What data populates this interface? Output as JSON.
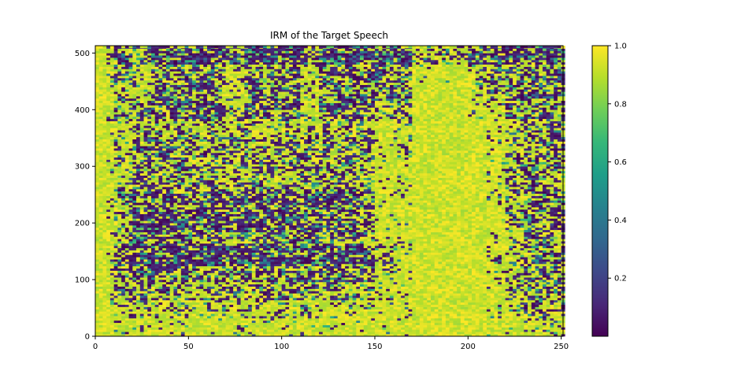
{
  "chart_data": {
    "type": "heatmap",
    "title": "IRM of the Target Speech",
    "xlabel": "",
    "ylabel": "",
    "xlim": [
      0,
      251
    ],
    "ylim": [
      0,
      513
    ],
    "x_ticks": [
      0,
      50,
      100,
      150,
      200,
      250
    ],
    "y_ticks": [
      0,
      100,
      200,
      300,
      400,
      500
    ],
    "colormap": "viridis",
    "color_range": [
      0,
      1
    ],
    "colorbar_ticks": [
      0.2,
      0.4,
      0.6,
      0.8,
      1.0
    ],
    "colorbar_tick_labels": [
      "0.2",
      "0.4",
      "0.6",
      "0.8",
      "1.0"
    ],
    "grid": false,
    "approx_mean_grid": {
      "x_step": 10,
      "y_step": 32,
      "rows_bottom_to_top": [
        [
          1,
          0.9,
          0.9,
          0.9,
          0.9,
          0.9,
          0.9,
          0.9,
          0.9,
          0.9,
          0.9,
          0.9,
          0.9,
          0.9,
          0.9,
          0.95,
          0.95,
          1,
          1,
          1,
          1,
          0.95,
          0.95,
          0.85,
          0.7
        ],
        [
          0.95,
          0.75,
          0.75,
          0.75,
          0.75,
          0.75,
          0.75,
          0.75,
          0.75,
          0.75,
          0.75,
          0.75,
          0.75,
          0.75,
          0.85,
          0.9,
          0.9,
          1,
          1,
          1,
          1,
          0.85,
          0.85,
          0.6,
          0.5
        ],
        [
          0.85,
          0.5,
          0.5,
          0.5,
          0.5,
          0.55,
          0.5,
          0.5,
          0.5,
          0.5,
          0.5,
          0.5,
          0.5,
          0.5,
          0.55,
          0.85,
          0.85,
          1,
          1,
          1,
          1,
          0.9,
          0.6,
          0.5,
          0.5
        ],
        [
          0.8,
          0.35,
          0.35,
          0.35,
          0.3,
          0.4,
          0.35,
          0.35,
          0.4,
          0.35,
          0.35,
          0.35,
          0.35,
          0.35,
          0.45,
          0.8,
          0.85,
          1,
          1,
          1,
          1,
          0.85,
          0.6,
          0.45,
          0.5
        ],
        [
          0.75,
          0.3,
          0.15,
          0.15,
          0.15,
          0.25,
          0.15,
          0.15,
          0.2,
          0.15,
          0.15,
          0.15,
          0.2,
          0.15,
          0.25,
          0.45,
          0.8,
          1,
          1,
          1,
          1,
          0.85,
          0.7,
          0.5,
          0.5
        ],
        [
          0.8,
          0.5,
          0.3,
          0.3,
          0.35,
          0.4,
          0.35,
          0.3,
          0.3,
          0.35,
          0.3,
          0.3,
          0.3,
          0.35,
          0.55,
          0.85,
          0.9,
          1,
          1,
          1,
          1,
          0.9,
          0.7,
          0.45,
          0.45
        ],
        [
          0.85,
          0.6,
          0.25,
          0.25,
          0.25,
          0.3,
          0.3,
          0.25,
          0.3,
          0.3,
          0.35,
          0.45,
          0.3,
          0.25,
          0.5,
          0.9,
          0.9,
          1,
          1,
          1,
          1,
          0.9,
          0.6,
          0.4,
          0.4
        ],
        [
          0.85,
          0.6,
          0.3,
          0.3,
          0.3,
          0.35,
          0.35,
          0.3,
          0.3,
          0.35,
          0.3,
          0.35,
          0.3,
          0.3,
          0.55,
          0.9,
          0.9,
          1,
          1,
          1,
          1,
          0.9,
          0.6,
          0.45,
          0.4
        ],
        [
          0.9,
          0.7,
          0.45,
          0.45,
          0.45,
          0.6,
          0.5,
          0.5,
          0.5,
          0.65,
          0.5,
          0.45,
          0.45,
          0.45,
          0.55,
          0.95,
          0.9,
          1,
          1,
          1,
          1,
          0.9,
          0.65,
          0.5,
          0.45
        ],
        [
          0.9,
          0.7,
          0.45,
          0.45,
          0.5,
          0.55,
          0.55,
          0.5,
          0.5,
          0.6,
          0.5,
          0.45,
          0.5,
          0.45,
          0.6,
          0.9,
          0.85,
          1,
          1,
          1,
          1,
          0.85,
          0.6,
          0.45,
          0.45
        ],
        [
          0.9,
          0.7,
          0.35,
          0.35,
          0.4,
          0.55,
          0.5,
          0.5,
          0.45,
          0.55,
          0.5,
          0.4,
          0.5,
          0.45,
          0.55,
          0.9,
          0.75,
          1,
          1,
          1,
          1,
          0.85,
          0.6,
          0.45,
          0.4
        ],
        [
          0.9,
          0.7,
          0.55,
          0.5,
          0.5,
          0.6,
          0.55,
          0.6,
          0.65,
          0.7,
          0.55,
          0.6,
          0.7,
          0.5,
          0.5,
          0.9,
          0.75,
          1,
          1,
          1,
          1,
          0.9,
          0.6,
          0.45,
          0.4
        ],
        [
          0.9,
          0.6,
          0.5,
          0.35,
          0.3,
          0.3,
          0.3,
          0.75,
          0.3,
          0.35,
          0.3,
          0.85,
          0.3,
          0.3,
          0.3,
          0.6,
          0.5,
          1,
          1,
          1,
          0.9,
          0.8,
          0.5,
          0.45,
          0.45
        ],
        [
          0.85,
          0.5,
          0.75,
          0.4,
          0.4,
          0.4,
          0.4,
          0.8,
          0.45,
          0.45,
          0.4,
          0.8,
          0.35,
          0.35,
          0.35,
          0.4,
          0.45,
          1,
          1,
          1,
          0.7,
          0.5,
          0.45,
          0.45,
          0.4
        ],
        [
          0.8,
          0.5,
          0.8,
          0.45,
          0.45,
          0.4,
          0.45,
          0.85,
          0.45,
          0.5,
          0.4,
          0.85,
          0.35,
          0.35,
          0.35,
          0.3,
          0.55,
          0.9,
          0.9,
          0.95,
          0.7,
          0.45,
          0.4,
          0.4,
          0.4
        ],
        [
          0.7,
          0.25,
          0.5,
          0.2,
          0.2,
          0.2,
          0.2,
          0.45,
          0.2,
          0.25,
          0.2,
          0.35,
          0.2,
          0.2,
          0.2,
          0.15,
          0.3,
          0.7,
          0.6,
          0.65,
          0.3,
          0.25,
          0.25,
          0.25,
          0.25
        ]
      ]
    }
  }
}
